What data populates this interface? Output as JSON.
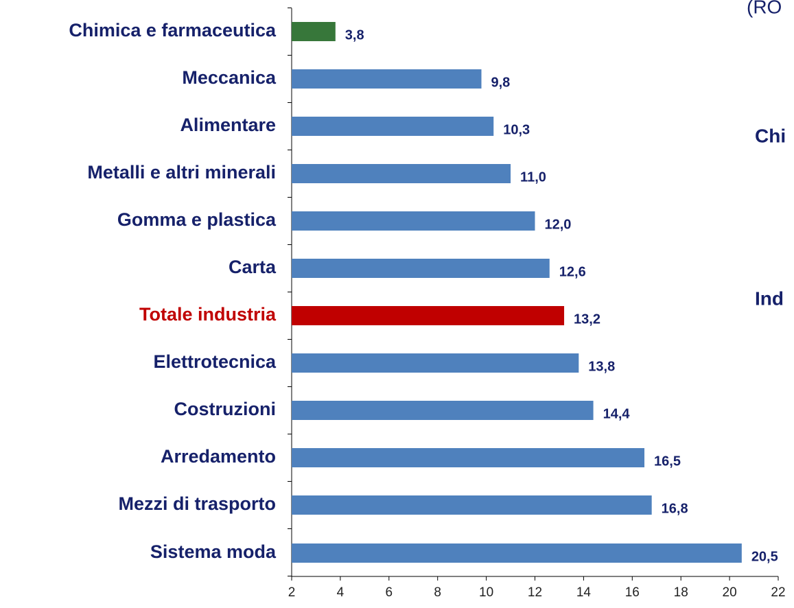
{
  "chart_data": {
    "type": "bar",
    "orientation": "horizontal",
    "categories": [
      "Chimica e farmaceutica",
      "Meccanica",
      "Alimentare",
      "Metalli e altri minerali",
      "Gomma e plastica",
      "Carta",
      "Totale industria",
      "Elettrotecnica",
      "Costruzioni",
      "Arredamento",
      "Mezzi di trasporto",
      "Sistema moda"
    ],
    "values": [
      3.8,
      9.8,
      10.3,
      11.0,
      12.0,
      12.6,
      13.2,
      13.8,
      14.4,
      16.5,
      16.8,
      20.5
    ],
    "value_labels": [
      "3,8",
      "9,8",
      "10,3",
      "11,0",
      "12,0",
      "12,6",
      "13,2",
      "13,8",
      "14,4",
      "16,5",
      "16,8",
      "20,5"
    ],
    "colors": [
      "#37773a",
      "#4f81bd",
      "#4f81bd",
      "#4f81bd",
      "#4f81bd",
      "#4f81bd",
      "#c00000",
      "#4f81bd",
      "#4f81bd",
      "#4f81bd",
      "#4f81bd",
      "#4f81bd"
    ],
    "label_colors": [
      "#16216a",
      "#16216a",
      "#16216a",
      "#16216a",
      "#16216a",
      "#16216a",
      "#c00000",
      "#16216a",
      "#16216a",
      "#16216a",
      "#16216a",
      "#16216a"
    ],
    "xlim": [
      2,
      22
    ],
    "xticks": [
      2,
      4,
      6,
      8,
      10,
      12,
      14,
      16,
      18,
      20,
      22
    ],
    "annotations": [
      "(RO",
      "Chi",
      "Ind"
    ]
  }
}
